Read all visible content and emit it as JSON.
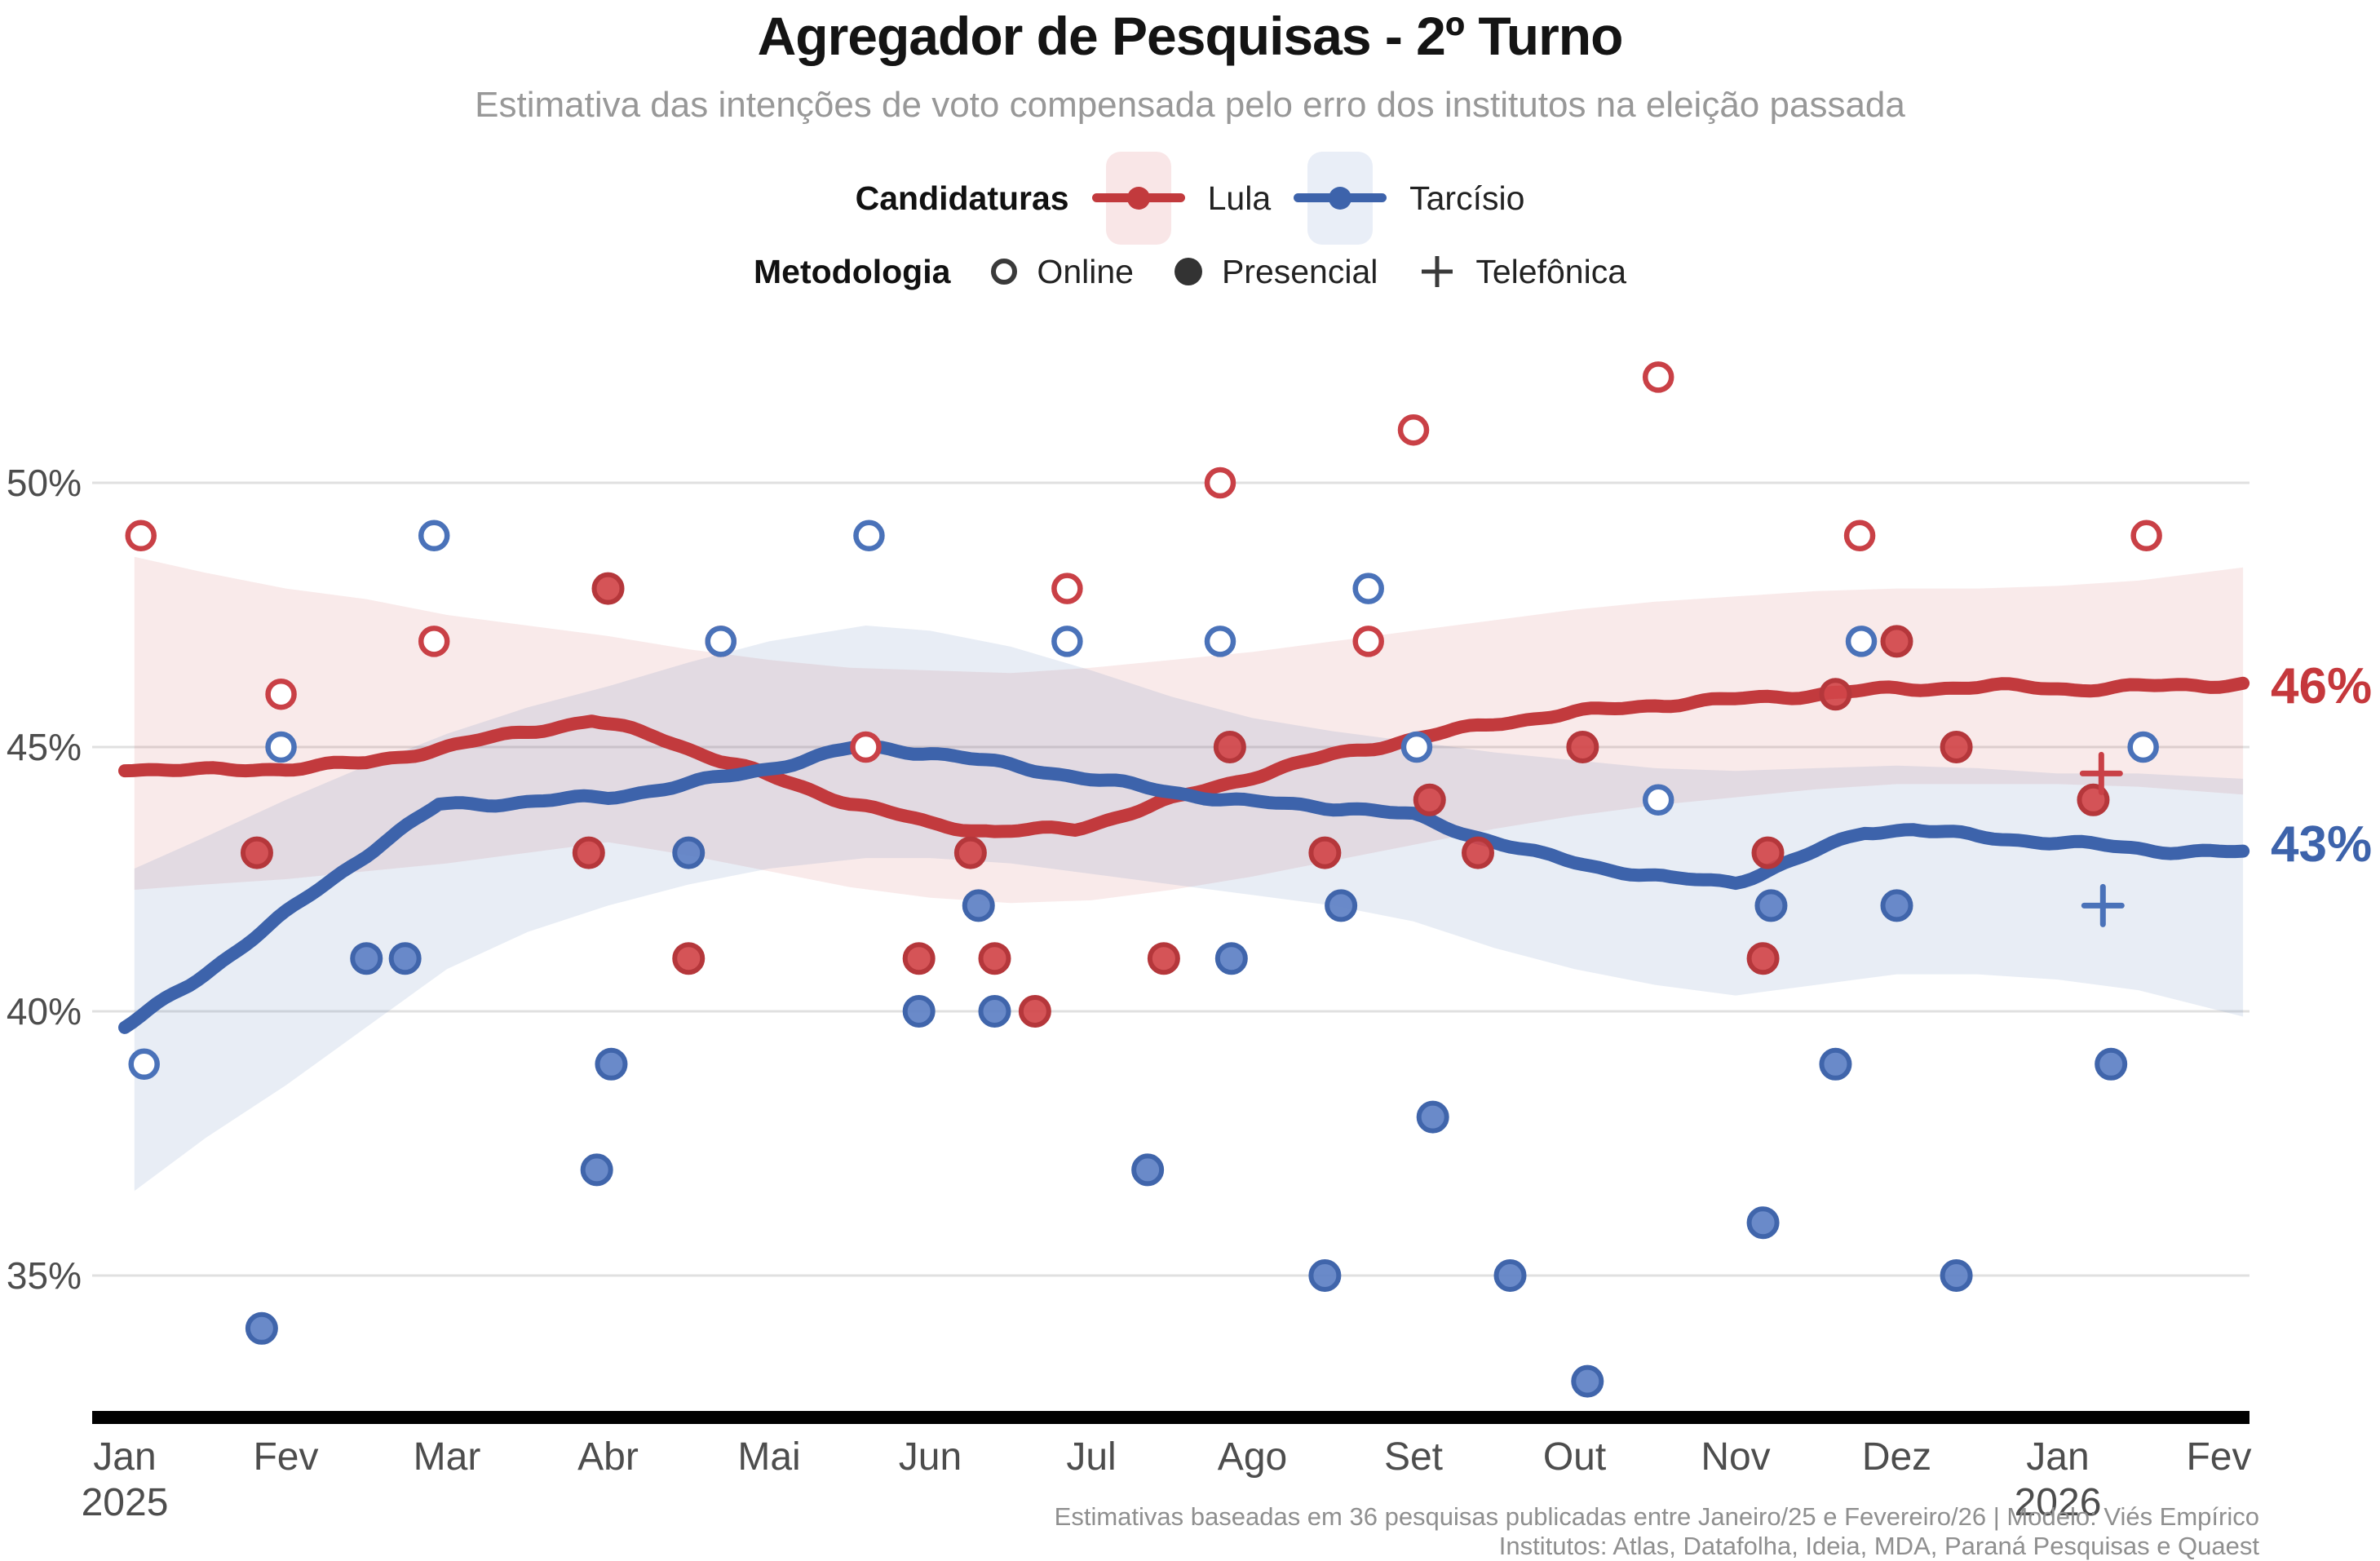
{
  "title": "Agregador de Pesquisas - 2º Turno",
  "subtitle": "Estimativa das intenções de voto compensada pelo erro dos institutos na eleição passada",
  "legend": {
    "candidaturas_label": "Candidaturas",
    "lula_label": "Lula",
    "tarcisio_label": "Tarcísio",
    "metodologia_label": "Metodologia",
    "online_label": "Online",
    "presencial_label": "Presencial",
    "telefonica_label": "Telefônica"
  },
  "end_labels": {
    "lula": "46%",
    "tarcisio": "43%"
  },
  "footer": {
    "line1": "Estimativas baseadas em 36 pesquisas publicadas entre Janeiro/25 e Fevereiro/26 | Modelo: Viés Empírico",
    "line2": "Institutos: Atlas, Datafolha, Ideia, MDA, Paraná Pesquisas e Quaest"
  },
  "colors": {
    "lula_line": "#c23a3d",
    "lula_fill": "#d14549",
    "lula_stroke": "#b5373b",
    "lula_open": "#c94046",
    "lula_band": "rgba(198,62,68,0.11)",
    "lula_label": "#c5383c",
    "tarcisio_line": "#3d63ab",
    "tarcisio_fill": "#5d80c4",
    "tarcisio_stroke": "#4065ab",
    "tarcisio_open": "#4a72b9",
    "tarcisio_band": "rgba(80,115,180,0.13)",
    "tarcisio_label": "#3d63ab",
    "grid": "#e0e0e0",
    "axis_text": "#4d4d4d",
    "axis_bar": "#000000",
    "method_icon": "#3a3a3a"
  },
  "chart_data": {
    "type": "line",
    "x_unit": "months_from_jan_2025",
    "ylim": [
      32,
      52.5
    ],
    "grid": true,
    "legend_position": "top-center",
    "y_ticks": [
      {
        "v": 50,
        "label": "50%"
      },
      {
        "v": 45,
        "label": "45%"
      },
      {
        "v": 40,
        "label": "40%"
      },
      {
        "v": 35,
        "label": "35%"
      }
    ],
    "x_ticks": [
      {
        "m": 0,
        "label": "Jan",
        "year": "2025"
      },
      {
        "m": 1,
        "label": "Fev"
      },
      {
        "m": 2,
        "label": "Mar"
      },
      {
        "m": 3,
        "label": "Abr"
      },
      {
        "m": 4,
        "label": "Mai"
      },
      {
        "m": 5,
        "label": "Jun"
      },
      {
        "m": 6,
        "label": "Jul"
      },
      {
        "m": 7,
        "label": "Ago"
      },
      {
        "m": 8,
        "label": "Set"
      },
      {
        "m": 9,
        "label": "Out"
      },
      {
        "m": 10,
        "label": "Nov"
      },
      {
        "m": 11,
        "label": "Dez"
      },
      {
        "m": 12,
        "label": "Jan",
        "year": "2026"
      },
      {
        "m": 13,
        "label": "Fev"
      }
    ],
    "series": [
      {
        "key": "lula",
        "name": "Lula",
        "end_label": "46%",
        "end_value": 46,
        "trend": [
          [
            0,
            44.6
          ],
          [
            0.5,
            44.55
          ],
          [
            1,
            44.6
          ],
          [
            1.5,
            44.7
          ],
          [
            2,
            45.0
          ],
          [
            2.5,
            45.3
          ],
          [
            2.9,
            45.5
          ],
          [
            3.3,
            45.2
          ],
          [
            3.7,
            44.75
          ],
          [
            4,
            44.45
          ],
          [
            4.5,
            43.95
          ],
          [
            5,
            43.55
          ],
          [
            5.4,
            43.4
          ],
          [
            5.9,
            43.45
          ],
          [
            6.5,
            44.0
          ],
          [
            7,
            44.45
          ],
          [
            7.5,
            44.85
          ],
          [
            8,
            45.15
          ],
          [
            8.5,
            45.45
          ],
          [
            9,
            45.65
          ],
          [
            9.5,
            45.8
          ],
          [
            10,
            45.9
          ],
          [
            10.5,
            46.0
          ],
          [
            11,
            46.1
          ],
          [
            11.6,
            46.15
          ],
          [
            12.1,
            46.1
          ],
          [
            12.6,
            46.15
          ],
          [
            13.15,
            46.2
          ]
        ],
        "band": [
          [
            0.06,
            42.3,
            48.6
          ],
          [
            0.5,
            42.4,
            48.3
          ],
          [
            1,
            42.5,
            48.0
          ],
          [
            1.5,
            42.65,
            47.8
          ],
          [
            2,
            42.8,
            47.5
          ],
          [
            2.5,
            43.0,
            47.3
          ],
          [
            3,
            43.2,
            47.1
          ],
          [
            3.5,
            42.95,
            46.85
          ],
          [
            4,
            42.65,
            46.65
          ],
          [
            4.5,
            42.35,
            46.5
          ],
          [
            5,
            42.15,
            46.45
          ],
          [
            5.5,
            42.05,
            46.4
          ],
          [
            6,
            42.1,
            46.5
          ],
          [
            6.5,
            42.3,
            46.65
          ],
          [
            7,
            42.55,
            46.8
          ],
          [
            7.5,
            42.85,
            47.0
          ],
          [
            8,
            43.15,
            47.2
          ],
          [
            8.5,
            43.45,
            47.4
          ],
          [
            9,
            43.7,
            47.6
          ],
          [
            9.5,
            43.9,
            47.75
          ],
          [
            10,
            44.05,
            47.85
          ],
          [
            10.5,
            44.2,
            47.95
          ],
          [
            11,
            44.3,
            48.0
          ],
          [
            11.5,
            44.3,
            48.0
          ],
          [
            12,
            44.3,
            48.05
          ],
          [
            12.5,
            44.25,
            48.15
          ],
          [
            13.15,
            44.1,
            48.4
          ]
        ]
      },
      {
        "key": "tarcisio",
        "name": "Tarcísio",
        "end_label": "43%",
        "end_value": 43,
        "trend": [
          [
            0,
            39.7
          ],
          [
            0.4,
            40.5
          ],
          [
            0.8,
            41.4
          ],
          [
            1.2,
            42.3
          ],
          [
            1.6,
            43.2
          ],
          [
            1.95,
            43.9
          ],
          [
            2.4,
            43.95
          ],
          [
            3,
            44.05
          ],
          [
            3.5,
            44.3
          ],
          [
            4,
            44.6
          ],
          [
            4.55,
            45.0
          ],
          [
            5,
            44.9
          ],
          [
            5.5,
            44.65
          ],
          [
            6,
            44.4
          ],
          [
            6.5,
            44.15
          ],
          [
            7,
            43.95
          ],
          [
            7.6,
            43.85
          ],
          [
            8,
            43.7
          ],
          [
            8.4,
            43.3
          ],
          [
            8.8,
            42.95
          ],
          [
            9.2,
            42.7
          ],
          [
            9.6,
            42.5
          ],
          [
            10,
            42.45
          ],
          [
            10.4,
            42.9
          ],
          [
            10.8,
            43.4
          ],
          [
            11.1,
            43.45
          ],
          [
            11.5,
            43.3
          ],
          [
            12,
            43.2
          ],
          [
            12.6,
            43.05
          ],
          [
            13.15,
            43.0
          ]
        ],
        "band": [
          [
            0.06,
            36.6,
            42.7
          ],
          [
            0.5,
            37.6,
            43.3
          ],
          [
            1,
            38.6,
            44.0
          ],
          [
            1.5,
            39.7,
            44.65
          ],
          [
            2,
            40.8,
            45.25
          ],
          [
            2.5,
            41.5,
            45.75
          ],
          [
            3,
            42.0,
            46.15
          ],
          [
            3.5,
            42.4,
            46.6
          ],
          [
            4,
            42.7,
            47.0
          ],
          [
            4.6,
            42.9,
            47.3
          ],
          [
            5,
            42.9,
            47.2
          ],
          [
            5.5,
            42.8,
            46.9
          ],
          [
            6,
            42.6,
            46.45
          ],
          [
            6.5,
            42.4,
            45.95
          ],
          [
            7,
            42.2,
            45.55
          ],
          [
            7.5,
            42.0,
            45.3
          ],
          [
            8,
            41.7,
            45.1
          ],
          [
            8.5,
            41.2,
            44.9
          ],
          [
            9,
            40.8,
            44.75
          ],
          [
            9.5,
            40.5,
            44.6
          ],
          [
            10,
            40.3,
            44.55
          ],
          [
            10.5,
            40.5,
            44.6
          ],
          [
            11,
            40.7,
            44.65
          ],
          [
            11.5,
            40.7,
            44.6
          ],
          [
            12,
            40.6,
            44.5
          ],
          [
            12.5,
            40.4,
            44.5
          ],
          [
            13.15,
            39.9,
            44.4
          ]
        ]
      }
    ],
    "points": [
      {
        "m": 0.1,
        "v": 49,
        "candidate": "Lula",
        "method": "online"
      },
      {
        "m": 0.82,
        "v": 43,
        "candidate": "Lula",
        "method": "presencial"
      },
      {
        "m": 0.97,
        "v": 46,
        "candidate": "Lula",
        "method": "online"
      },
      {
        "m": 1.92,
        "v": 47,
        "candidate": "Lula",
        "method": "online"
      },
      {
        "m": 2.88,
        "v": 43,
        "candidate": "Lula",
        "method": "presencial"
      },
      {
        "m": 3.0,
        "v": 48,
        "candidate": "Lula",
        "method": "presencial"
      },
      {
        "m": 3.5,
        "v": 41,
        "candidate": "Lula",
        "method": "presencial"
      },
      {
        "m": 3.7,
        "v": 47,
        "candidate": "Lula",
        "method": "online"
      },
      {
        "m": 4.6,
        "v": 45,
        "candidate": "Lula",
        "method": "online"
      },
      {
        "m": 4.93,
        "v": 41,
        "candidate": "Lula",
        "method": "presencial"
      },
      {
        "m": 5.25,
        "v": 43,
        "candidate": "Lula",
        "method": "presencial"
      },
      {
        "m": 5.4,
        "v": 41,
        "candidate": "Lula",
        "method": "presencial"
      },
      {
        "m": 5.65,
        "v": 40,
        "candidate": "Lula",
        "method": "presencial"
      },
      {
        "m": 5.85,
        "v": 48,
        "candidate": "Lula",
        "method": "online"
      },
      {
        "m": 6.45,
        "v": 41,
        "candidate": "Lula",
        "method": "presencial"
      },
      {
        "m": 6.8,
        "v": 50,
        "candidate": "Lula",
        "method": "online"
      },
      {
        "m": 6.86,
        "v": 45,
        "candidate": "Lula",
        "method": "presencial"
      },
      {
        "m": 7.45,
        "v": 43,
        "candidate": "Lula",
        "method": "presencial"
      },
      {
        "m": 7.72,
        "v": 47,
        "candidate": "Lula",
        "method": "online"
      },
      {
        "m": 8.0,
        "v": 51,
        "candidate": "Lula",
        "method": "online"
      },
      {
        "m": 8.1,
        "v": 44,
        "candidate": "Lula",
        "method": "presencial"
      },
      {
        "m": 8.4,
        "v": 43,
        "candidate": "Lula",
        "method": "presencial"
      },
      {
        "m": 9.05,
        "v": 45,
        "candidate": "Lula",
        "method": "presencial"
      },
      {
        "m": 9.52,
        "v": 52,
        "candidate": "Lula",
        "method": "online"
      },
      {
        "m": 10.17,
        "v": 41,
        "candidate": "Lula",
        "method": "presencial"
      },
      {
        "m": 10.2,
        "v": 43,
        "candidate": "Lula",
        "method": "presencial"
      },
      {
        "m": 10.62,
        "v": 46,
        "candidate": "Lula",
        "method": "presencial"
      },
      {
        "m": 10.77,
        "v": 49,
        "candidate": "Lula",
        "method": "online"
      },
      {
        "m": 11.0,
        "v": 47,
        "candidate": "Lula",
        "method": "presencial"
      },
      {
        "m": 11.37,
        "v": 45,
        "candidate": "Lula",
        "method": "presencial"
      },
      {
        "m": 12.22,
        "v": 44,
        "candidate": "Lula",
        "method": "presencial"
      },
      {
        "m": 12.27,
        "v": 44.5,
        "candidate": "Lula",
        "method": "telefonica"
      },
      {
        "m": 12.55,
        "v": 49,
        "candidate": "Lula",
        "method": "online"
      },
      {
        "m": 0.12,
        "v": 39,
        "candidate": "Tarcísio",
        "method": "online"
      },
      {
        "m": 0.85,
        "v": 34,
        "candidate": "Tarcísio",
        "method": "presencial"
      },
      {
        "m": 0.97,
        "v": 45,
        "candidate": "Tarcísio",
        "method": "online"
      },
      {
        "m": 1.5,
        "v": 41,
        "candidate": "Tarcísio",
        "method": "presencial"
      },
      {
        "m": 1.74,
        "v": 41,
        "candidate": "Tarcísio",
        "method": "presencial"
      },
      {
        "m": 1.92,
        "v": 49,
        "candidate": "Tarcísio",
        "method": "online"
      },
      {
        "m": 2.93,
        "v": 37,
        "candidate": "Tarcísio",
        "method": "presencial"
      },
      {
        "m": 3.02,
        "v": 39,
        "candidate": "Tarcísio",
        "method": "presencial"
      },
      {
        "m": 3.5,
        "v": 43,
        "candidate": "Tarcísio",
        "method": "presencial"
      },
      {
        "m": 3.7,
        "v": 47,
        "candidate": "Tarcísio",
        "method": "online"
      },
      {
        "m": 4.62,
        "v": 49,
        "candidate": "Tarcísio",
        "method": "online"
      },
      {
        "m": 4.93,
        "v": 40,
        "candidate": "Tarcísio",
        "method": "presencial"
      },
      {
        "m": 5.3,
        "v": 42,
        "candidate": "Tarcísio",
        "method": "presencial"
      },
      {
        "m": 5.4,
        "v": 40,
        "candidate": "Tarcísio",
        "method": "presencial"
      },
      {
        "m": 5.85,
        "v": 47,
        "candidate": "Tarcísio",
        "method": "online"
      },
      {
        "m": 6.35,
        "v": 37,
        "candidate": "Tarcísio",
        "method": "presencial"
      },
      {
        "m": 6.8,
        "v": 47,
        "candidate": "Tarcísio",
        "method": "online"
      },
      {
        "m": 6.87,
        "v": 41,
        "candidate": "Tarcísio",
        "method": "presencial"
      },
      {
        "m": 7.45,
        "v": 35,
        "candidate": "Tarcísio",
        "method": "presencial"
      },
      {
        "m": 7.55,
        "v": 42,
        "candidate": "Tarcísio",
        "method": "presencial"
      },
      {
        "m": 7.72,
        "v": 48,
        "candidate": "Tarcísio",
        "method": "online"
      },
      {
        "m": 8.02,
        "v": 45,
        "candidate": "Tarcísio",
        "method": "online"
      },
      {
        "m": 8.12,
        "v": 38,
        "candidate": "Tarcísio",
        "method": "presencial"
      },
      {
        "m": 8.6,
        "v": 35,
        "candidate": "Tarcísio",
        "method": "presencial"
      },
      {
        "m": 9.08,
        "v": 33,
        "candidate": "Tarcísio",
        "method": "presencial"
      },
      {
        "m": 9.52,
        "v": 44,
        "candidate": "Tarcísio",
        "method": "online"
      },
      {
        "m": 10.17,
        "v": 36,
        "candidate": "Tarcísio",
        "method": "presencial"
      },
      {
        "m": 10.22,
        "v": 42,
        "candidate": "Tarcísio",
        "method": "presencial"
      },
      {
        "m": 10.62,
        "v": 39,
        "candidate": "Tarcísio",
        "method": "presencial"
      },
      {
        "m": 10.78,
        "v": 47,
        "candidate": "Tarcísio",
        "method": "online"
      },
      {
        "m": 11.0,
        "v": 42,
        "candidate": "Tarcísio",
        "method": "presencial"
      },
      {
        "m": 11.37,
        "v": 35,
        "candidate": "Tarcísio",
        "method": "presencial"
      },
      {
        "m": 12.28,
        "v": 42,
        "candidate": "Tarcísio",
        "method": "telefonica"
      },
      {
        "m": 12.33,
        "v": 39,
        "candidate": "Tarcísio",
        "method": "presencial"
      },
      {
        "m": 12.53,
        "v": 45,
        "candidate": "Tarcísio",
        "method": "online"
      }
    ]
  }
}
